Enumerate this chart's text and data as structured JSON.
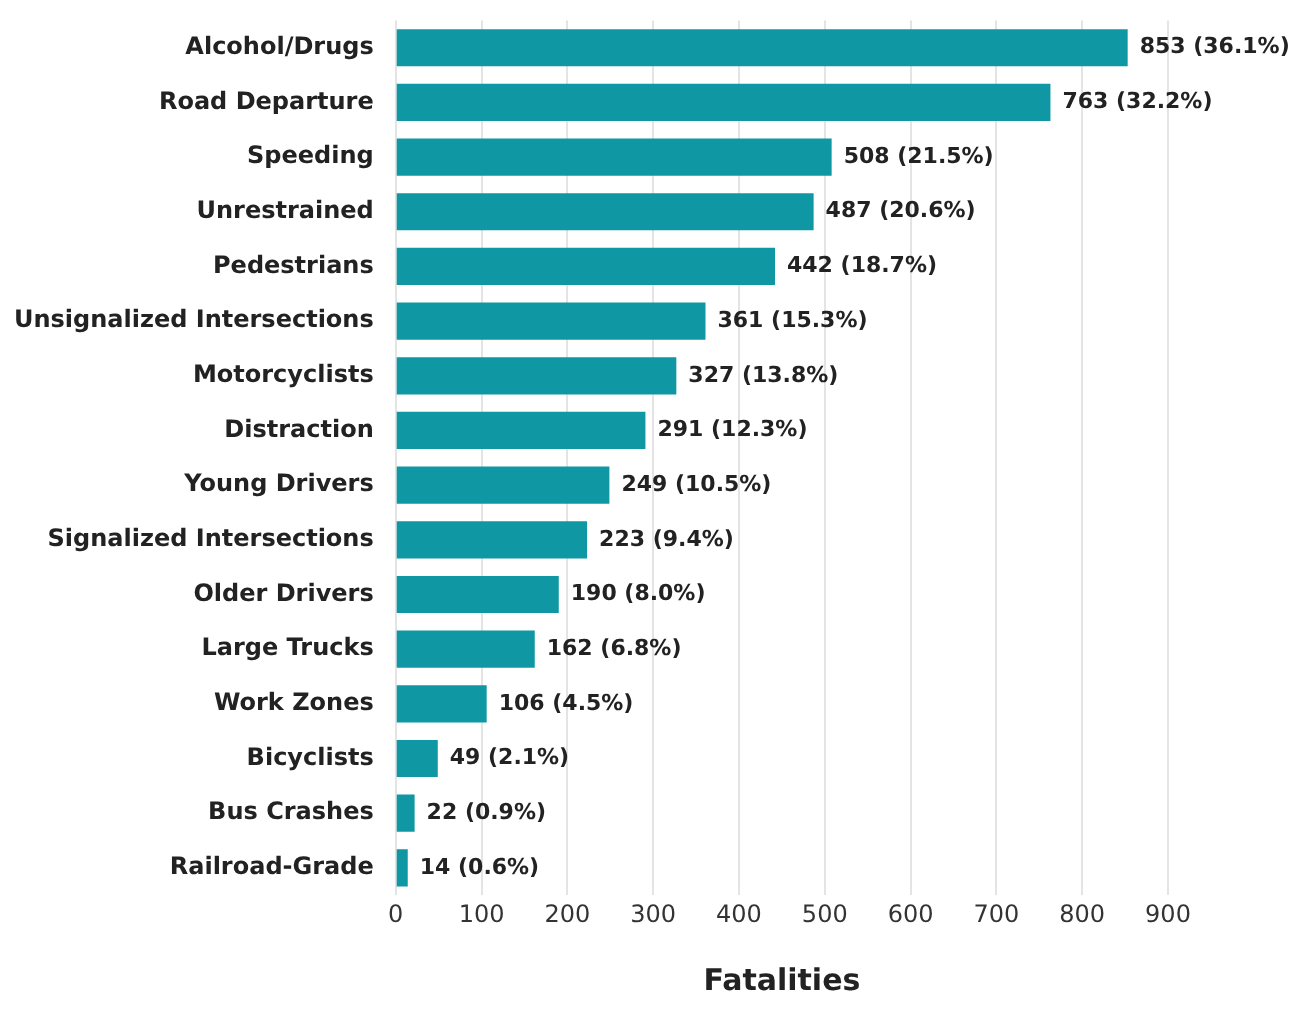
{
  "chart_data": {
    "type": "bar",
    "orientation": "horizontal",
    "xlabel": "Fatalities",
    "categories": [
      "Alcohol/Drugs",
      "Road Departure",
      "Speeding",
      "Unrestrained",
      "Pedestrians",
      "Unsignalized Intersections",
      "Motorcyclists",
      "Distraction",
      "Young Drivers",
      "Signalized Intersections",
      "Older Drivers",
      "Large Trucks",
      "Work Zones",
      "Bicyclists",
      "Bus Crashes",
      "Railroad-Grade"
    ],
    "values": [
      853,
      763,
      508,
      487,
      442,
      361,
      327,
      291,
      249,
      223,
      190,
      162,
      106,
      49,
      22,
      14
    ],
    "value_labels": [
      "853 (36.1%)",
      "763 (32.2%)",
      "508 (21.5%)",
      "487 (20.6%)",
      "442 (18.7%)",
      "361 (15.3%)",
      "327 (13.8%)",
      "291 (12.3%)",
      "249 (10.5%)",
      "223 (9.4%)",
      "190 (8.0%)",
      "162 (6.8%)",
      "106 (4.5%)",
      "49 (2.1%)",
      "22 (0.9%)",
      "14 (0.6%)"
    ],
    "color": "#0f97a3",
    "xlim": [
      0,
      900
    ],
    "xticks": [
      0,
      100,
      200,
      300,
      400,
      500,
      600,
      700,
      800,
      900
    ],
    "grid": "x",
    "legend": false
  }
}
